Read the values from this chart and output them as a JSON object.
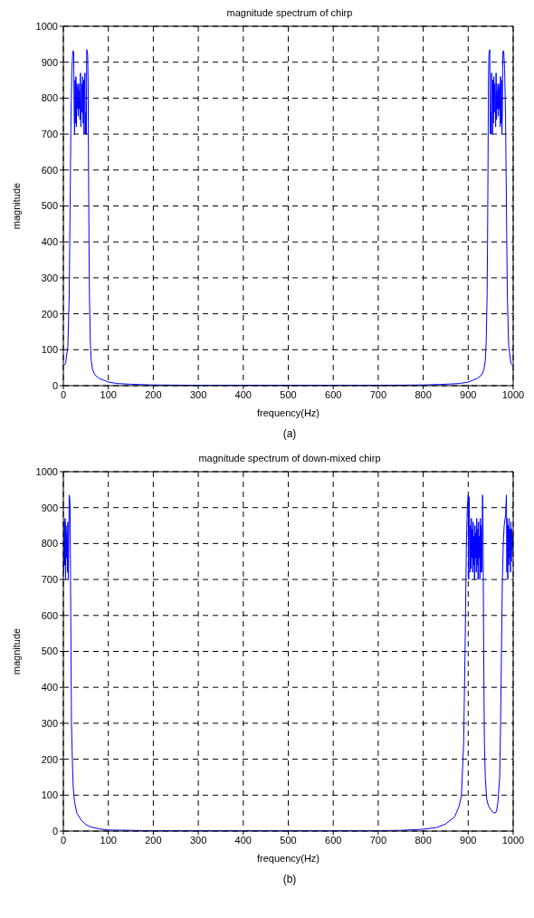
{
  "chart_data": [
    {
      "type": "line",
      "title": "magnitude spectrum of chirp",
      "xlabel": "frequency(Hz)",
      "ylabel": "magnitude",
      "annotations": [
        "(a)"
      ],
      "xlim": [
        0,
        1000
      ],
      "ylim": [
        0,
        1000
      ],
      "xticks": [
        0,
        100,
        200,
        300,
        400,
        500,
        600,
        700,
        800,
        900,
        1000
      ],
      "yticks": [
        0,
        100,
        200,
        300,
        400,
        500,
        600,
        700,
        800,
        900,
        1000
      ],
      "grid": true,
      "marker": "none",
      "line_style": "solid",
      "series": [
        {
          "color": "#0000ff",
          "x": [
            0,
            5,
            10,
            13,
            15,
            17,
            19,
            21,
            22,
            23,
            24,
            25,
            26,
            27,
            28,
            29,
            30,
            31,
            32,
            33,
            34,
            35,
            36,
            37,
            38,
            39,
            40,
            41,
            42,
            43,
            44,
            45,
            46,
            47,
            48,
            49,
            50,
            51,
            52,
            53,
            54,
            55,
            56,
            57,
            58,
            60,
            62,
            65,
            70,
            80,
            90,
            100,
            120,
            150,
            200,
            300,
            400,
            500,
            600,
            700,
            800,
            850,
            880,
            900,
            910,
            920,
            930,
            935,
            938,
            940,
            942,
            943,
            944,
            945,
            946,
            947,
            948,
            949,
            950,
            951,
            952,
            953,
            954,
            955,
            956,
            957,
            958,
            959,
            960,
            961,
            962,
            963,
            964,
            965,
            966,
            967,
            968,
            969,
            970,
            971,
            972,
            973,
            974,
            975,
            976,
            977,
            978,
            979,
            981,
            983,
            985,
            987,
            990,
            995,
            1000
          ],
          "values": [
            55,
            62,
            110,
            250,
            500,
            750,
            880,
            930,
            932,
            928,
            760,
            700,
            850,
            730,
            860,
            720,
            840,
            770,
            830,
            750,
            840,
            770,
            820,
            740,
            870,
            720,
            800,
            840,
            760,
            860,
            730,
            850,
            700,
            820,
            870,
            700,
            760,
            700,
            935,
            930,
            920,
            850,
            600,
            400,
            250,
            120,
            70,
            45,
            30,
            20,
            15,
            10,
            6,
            4,
            2,
            1,
            1,
            1,
            1,
            1,
            2,
            4,
            6,
            10,
            15,
            20,
            30,
            45,
            70,
            120,
            250,
            400,
            600,
            850,
            920,
            930,
            935,
            700,
            760,
            700,
            870,
            820,
            700,
            850,
            730,
            860,
            760,
            840,
            800,
            720,
            870,
            740,
            820,
            770,
            840,
            750,
            830,
            770,
            840,
            720,
            860,
            730,
            850,
            700,
            760,
            928,
            932,
            930,
            880,
            750,
            500,
            250,
            110,
            62,
            55
          ]
        }
      ]
    },
    {
      "type": "line",
      "title": "magnitude spectrum of down-mixed chirp",
      "xlabel": "frequency(Hz)",
      "ylabel": "magnitude",
      "annotations": [
        "(b)"
      ],
      "xlim": [
        0,
        1000
      ],
      "ylim": [
        0,
        1000
      ],
      "xticks": [
        0,
        100,
        200,
        300,
        400,
        500,
        600,
        700,
        800,
        900,
        1000
      ],
      "yticks": [
        0,
        100,
        200,
        300,
        400,
        500,
        600,
        700,
        800,
        900,
        1000
      ],
      "grid": true,
      "marker": "none",
      "line_style": "solid",
      "series": [
        {
          "color": "#0000ff",
          "x": [
            0,
            1,
            2,
            3,
            4,
            5,
            6,
            7,
            8,
            9,
            10,
            11,
            12,
            13,
            14,
            15,
            16,
            17,
            18,
            20,
            22,
            25,
            30,
            40,
            50,
            60,
            80,
            100,
            150,
            200,
            300,
            400,
            500,
            600,
            700,
            750,
            800,
            830,
            850,
            870,
            880,
            885,
            890,
            893,
            896,
            898,
            900,
            901,
            902,
            903,
            904,
            905,
            906,
            907,
            908,
            909,
            910,
            911,
            912,
            913,
            914,
            915,
            916,
            917,
            918,
            919,
            920,
            921,
            922,
            923,
            924,
            925,
            926,
            927,
            928,
            929,
            930,
            932,
            933,
            934,
            935,
            936,
            938,
            941,
            945,
            950,
            955,
            960,
            963,
            966,
            970,
            972,
            974,
            976,
            978,
            980,
            983,
            985,
            986,
            987,
            988,
            989,
            990,
            991,
            992,
            993,
            994,
            995,
            996,
            997,
            998,
            999,
            1000
          ],
          "values": [
            800,
            720,
            860,
            740,
            870,
            700,
            850,
            760,
            830,
            720,
            860,
            700,
            810,
            935,
            930,
            900,
            700,
            500,
            300,
            200,
            120,
            80,
            50,
            30,
            18,
            12,
            6,
            3,
            2,
            1,
            1,
            1,
            1,
            1,
            1,
            2,
            5,
            10,
            20,
            40,
            70,
            100,
            250,
            500,
            800,
            900,
            935,
            700,
            930,
            860,
            720,
            850,
            730,
            870,
            760,
            840,
            720,
            860,
            740,
            820,
            700,
            850,
            760,
            830,
            720,
            870,
            740,
            840,
            700,
            860,
            760,
            820,
            700,
            870,
            720,
            850,
            720,
            935,
            850,
            600,
            400,
            250,
            150,
            90,
            70,
            60,
            52,
            50,
            55,
            80,
            150,
            300,
            500,
            700,
            800,
            850,
            880,
            935,
            720,
            870,
            700,
            850,
            740,
            870,
            760,
            840,
            720,
            860,
            750,
            840,
            780,
            820,
            800
          ]
        }
      ]
    }
  ]
}
